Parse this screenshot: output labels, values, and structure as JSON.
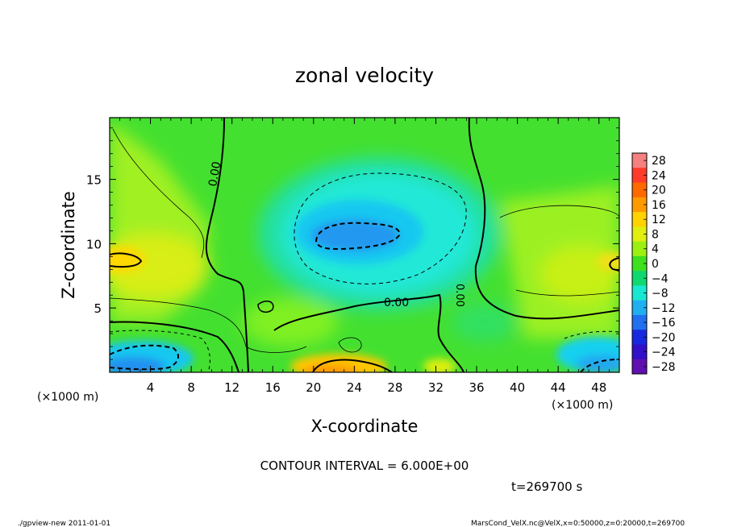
{
  "chart_data": {
    "type": "heatmap",
    "title": "zonal velocity",
    "xlabel": "X-coordinate",
    "ylabel": "Z-coordinate",
    "x_unit_label": "(×1000 m)",
    "y_unit_label": "(×1000 m)",
    "xlim": [
      0,
      50
    ],
    "ylim": [
      0,
      19.8
    ],
    "x_ticks": [
      4,
      8,
      12,
      16,
      20,
      24,
      28,
      32,
      36,
      40,
      44,
      48
    ],
    "y_ticks": [
      5,
      10,
      15
    ],
    "contour_interval_label": "CONTOUR INTERVAL = 6.000E+00",
    "time_label": "t=269700 s",
    "contour_labels": [
      "0.00",
      "0.00",
      "0.00"
    ],
    "colorbar": {
      "levels": [
        28,
        24,
        20,
        16,
        12,
        8,
        4,
        0,
        -4,
        -8,
        -12,
        -16,
        -20,
        -24,
        -28
      ],
      "colors": [
        "#f48080",
        "#ff3b2a",
        "#ff6a00",
        "#ff9a00",
        "#ffd200",
        "#e0ee10",
        "#9cf010",
        "#3ee020",
        "#10d870",
        "#18e8d0",
        "#20b0f0",
        "#2070f0",
        "#1828e0",
        "#3010c8",
        "#6010b0"
      ]
    },
    "features": [
      {
        "name": "negative core",
        "x": 25,
        "z": 11,
        "value": -12
      },
      {
        "name": "positive surface jet",
        "x": 22,
        "z": 0.5,
        "value": 12
      },
      {
        "name": "negative surface jet left",
        "x": 3,
        "z": 1,
        "value": -12
      },
      {
        "name": "negative surface jet right",
        "x": 46,
        "z": 1,
        "value": -12
      }
    ]
  },
  "footer": {
    "left": "./gpview-new 2011-01-01",
    "right": "MarsCond_VelX.nc@VelX,x=0:50000,z=0:20000,t=269700"
  }
}
